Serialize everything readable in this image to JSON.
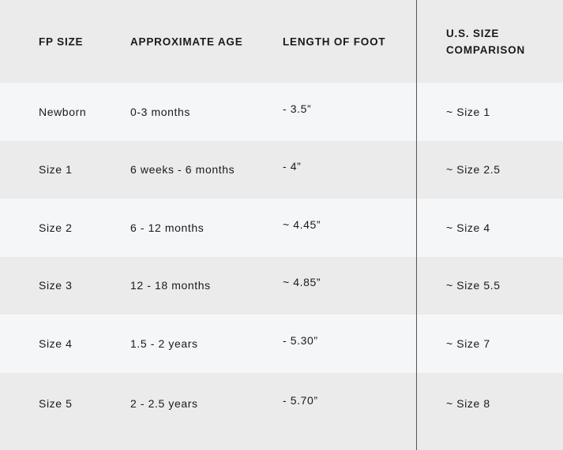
{
  "colors": {
    "header_bg": "#ebebeb",
    "row_light": "#f5f6f8",
    "row_gray": "#ebebeb",
    "divider": "#555555"
  },
  "headers": [
    "FP SIZE",
    "APPROXIMATE AGE",
    "LENGTH OF FOOT",
    "U.S. SIZE COMPARISON"
  ],
  "header_us_lines": [
    "U.S. SIZE",
    "COMPARISON"
  ],
  "rows": [
    [
      "Newborn",
      "0-3 months",
      "- 3.5”",
      "~ Size 1"
    ],
    [
      "Size 1",
      "6 weeks - 6 months",
      "- 4”",
      "~ Size 2.5"
    ],
    [
      "Size 2",
      "6 - 12 months",
      "~ 4.45”",
      "~ Size 4"
    ],
    [
      "Size 3",
      "12 - 18 months",
      "~ 4.85”",
      "~ Size 5.5"
    ],
    [
      "Size 4",
      "1.5 - 2 years",
      "- 5.30”",
      "~ Size 7"
    ],
    [
      "Size 5",
      "2 - 2.5 years",
      "- 5.70”",
      "~ Size 8"
    ]
  ]
}
